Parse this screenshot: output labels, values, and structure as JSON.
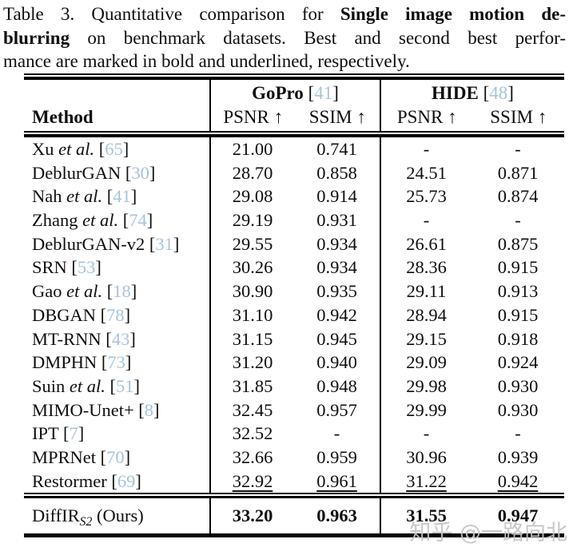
{
  "caption_lines": [
    {
      "segments": [
        {
          "t": "Table 3. Quantitative comparison for ",
          "s": ""
        },
        {
          "t": "Single image motion de-",
          "s": "b"
        }
      ]
    },
    {
      "segments": [
        {
          "t": "blurring",
          "s": "b"
        },
        {
          "t": " on benchmark datasets. Best and second best perfor-",
          "s": ""
        }
      ]
    },
    {
      "segments": [
        {
          "t": "mance are marked in bold and underlined, respectively.",
          "s": ""
        }
      ]
    }
  ],
  "table": {
    "method_header": "Method",
    "groups": [
      {
        "title": "GoPro",
        "ref": "41",
        "cite_open": " [",
        "cite_close": "]",
        "cols": [
          "PSNR ↑",
          "SSIM ↑"
        ]
      },
      {
        "title": "HIDE",
        "ref": "48",
        "cite_open": " [",
        "cite_close": "]",
        "cols": [
          "PSNR ↑",
          "SSIM ↑"
        ]
      }
    ],
    "col_names": [
      "gopro-psnr",
      "gopro-ssim",
      "hide-psnr",
      "hide-ssim"
    ],
    "rows": [
      {
        "method": [
          {
            "t": "Xu ",
            "s": ""
          },
          {
            "t": "et al.",
            "s": "i"
          },
          {
            "t": " [",
            "s": ""
          },
          {
            "t": "65",
            "s": "cite"
          },
          {
            "t": "]",
            "s": ""
          }
        ],
        "vals": [
          "21.00",
          "0.741",
          "-",
          "-"
        ],
        "style": ""
      },
      {
        "method": [
          {
            "t": "DeblurGAN [",
            "s": ""
          },
          {
            "t": "30",
            "s": "cite"
          },
          {
            "t": "]",
            "s": ""
          }
        ],
        "vals": [
          "28.70",
          "0.858",
          "24.51",
          "0.871"
        ],
        "style": ""
      },
      {
        "method": [
          {
            "t": "Nah ",
            "s": ""
          },
          {
            "t": "et al.",
            "s": "i"
          },
          {
            "t": " [",
            "s": ""
          },
          {
            "t": "41",
            "s": "cite"
          },
          {
            "t": "]",
            "s": ""
          }
        ],
        "vals": [
          "29.08",
          "0.914",
          "25.73",
          "0.874"
        ],
        "style": ""
      },
      {
        "method": [
          {
            "t": "Zhang ",
            "s": ""
          },
          {
            "t": "et al.",
            "s": "i"
          },
          {
            "t": " [",
            "s": ""
          },
          {
            "t": "74",
            "s": "cite"
          },
          {
            "t": "]",
            "s": ""
          }
        ],
        "vals": [
          "29.19",
          "0.931",
          "-",
          "-"
        ],
        "style": ""
      },
      {
        "method": [
          {
            "t": "DeblurGAN-v2 [",
            "s": ""
          },
          {
            "t": "31",
            "s": "cite"
          },
          {
            "t": "]",
            "s": ""
          }
        ],
        "vals": [
          "29.55",
          "0.934",
          "26.61",
          "0.875"
        ],
        "style": ""
      },
      {
        "method": [
          {
            "t": "SRN [",
            "s": ""
          },
          {
            "t": "53",
            "s": "cite"
          },
          {
            "t": "]",
            "s": ""
          }
        ],
        "vals": [
          "30.26",
          "0.934",
          "28.36",
          "0.915"
        ],
        "style": ""
      },
      {
        "method": [
          {
            "t": "Gao ",
            "s": ""
          },
          {
            "t": "et al.",
            "s": "i"
          },
          {
            "t": " [",
            "s": ""
          },
          {
            "t": "18",
            "s": "cite"
          },
          {
            "t": "]",
            "s": ""
          }
        ],
        "vals": [
          "30.90",
          "0.935",
          "29.11",
          "0.913"
        ],
        "style": ""
      },
      {
        "method": [
          {
            "t": "DBGAN [",
            "s": ""
          },
          {
            "t": "78",
            "s": "cite"
          },
          {
            "t": "]",
            "s": ""
          }
        ],
        "vals": [
          "31.10",
          "0.942",
          "28.94",
          "0.915"
        ],
        "style": ""
      },
      {
        "method": [
          {
            "t": "MT-RNN [",
            "s": ""
          },
          {
            "t": "43",
            "s": "cite"
          },
          {
            "t": "]",
            "s": ""
          }
        ],
        "vals": [
          "31.15",
          "0.945",
          "29.15",
          "0.918"
        ],
        "style": ""
      },
      {
        "method": [
          {
            "t": "DMPHN [",
            "s": ""
          },
          {
            "t": "73",
            "s": "cite"
          },
          {
            "t": "]",
            "s": ""
          }
        ],
        "vals": [
          "31.20",
          "0.940",
          "29.09",
          "0.924"
        ],
        "style": ""
      },
      {
        "method": [
          {
            "t": "Suin ",
            "s": ""
          },
          {
            "t": "et al.",
            "s": "i"
          },
          {
            "t": " [",
            "s": ""
          },
          {
            "t": "51",
            "s": "cite"
          },
          {
            "t": "]",
            "s": ""
          }
        ],
        "vals": [
          "31.85",
          "0.948",
          "29.98",
          "0.930"
        ],
        "style": ""
      },
      {
        "method": [
          {
            "t": "MIMO-Unet+ [",
            "s": ""
          },
          {
            "t": "8",
            "s": "cite"
          },
          {
            "t": "]",
            "s": ""
          }
        ],
        "vals": [
          "32.45",
          "0.957",
          "29.99",
          "0.930"
        ],
        "style": ""
      },
      {
        "method": [
          {
            "t": "IPT [",
            "s": ""
          },
          {
            "t": "7",
            "s": "cite"
          },
          {
            "t": "]",
            "s": ""
          }
        ],
        "vals": [
          "32.52",
          "-",
          "-",
          "-"
        ],
        "style": ""
      },
      {
        "method": [
          {
            "t": "MPRNet [",
            "s": ""
          },
          {
            "t": "70",
            "s": "cite"
          },
          {
            "t": "]",
            "s": ""
          }
        ],
        "vals": [
          "32.66",
          "0.959",
          "30.96",
          "0.939"
        ],
        "style": ""
      },
      {
        "method": [
          {
            "t": "Restormer [",
            "s": ""
          },
          {
            "t": "69",
            "s": "cite"
          },
          {
            "t": "]",
            "s": ""
          }
        ],
        "vals": [
          "32.92",
          "0.961",
          "31.22",
          "0.942"
        ],
        "style": "u"
      }
    ],
    "final_row": {
      "method": [
        {
          "t": "DiffIR",
          "s": ""
        },
        {
          "t": "S2",
          "s": "sub"
        },
        {
          "t": " (Ours)",
          "s": ""
        }
      ],
      "vals": [
        "33.20",
        "0.963",
        "31.55",
        "0.947"
      ],
      "style": "b"
    }
  },
  "watermark": {
    "text": "知乎 @一路向北"
  },
  "colors": {
    "citation": "#a6c3dd",
    "rule": "#000000",
    "watermark": "#c4c4c4"
  }
}
